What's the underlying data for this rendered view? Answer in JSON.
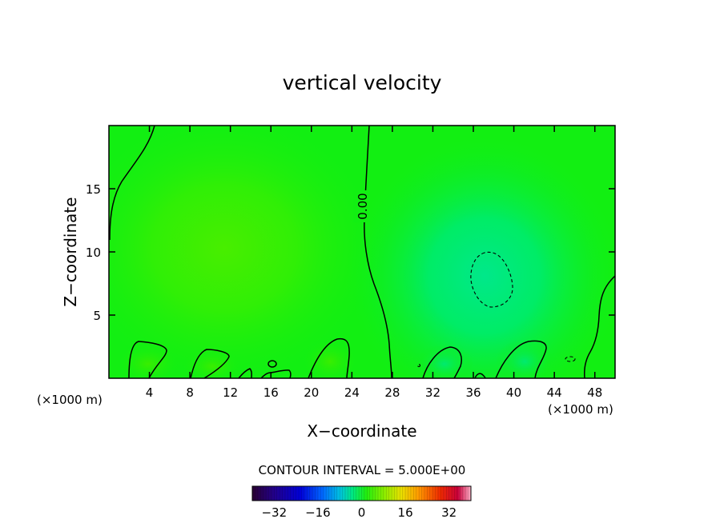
{
  "chart_data": {
    "type": "contour",
    "title": "vertical velocity",
    "xlabel": "X−coordinate",
    "ylabel": "Z−coordinate",
    "x_unit_left": "(×1000 m)",
    "x_unit_right": "(×1000 m)",
    "xlim": [
      0,
      50
    ],
    "ylim": [
      0,
      20
    ],
    "xticks": [
      4,
      8,
      12,
      16,
      20,
      24,
      28,
      32,
      36,
      40,
      44,
      48
    ],
    "yticks": [
      5,
      10,
      15
    ],
    "contour_label": "0.00",
    "contour_interval_text": "CONTOUR INTERVAL = 5.000E+00",
    "contour_interval": 5.0,
    "colorbar": {
      "min": -40,
      "max": 40,
      "ticks": [
        -32,
        -16,
        0,
        16,
        32
      ],
      "tick_labels": [
        "−32",
        "−16",
        "0",
        "16",
        "32"
      ]
    },
    "field_summary": {
      "positive_maximum_region": {
        "x": 11,
        "z": 11
      },
      "negative_minimum_region": {
        "x": 37.5,
        "z": 8
      },
      "zero_contour_x_near": 25
    }
  },
  "colors": {
    "background_field": "#12ef12",
    "positive_region": "#3aef00",
    "negative_region": "#00ed6e",
    "contour_line": "#000000"
  }
}
